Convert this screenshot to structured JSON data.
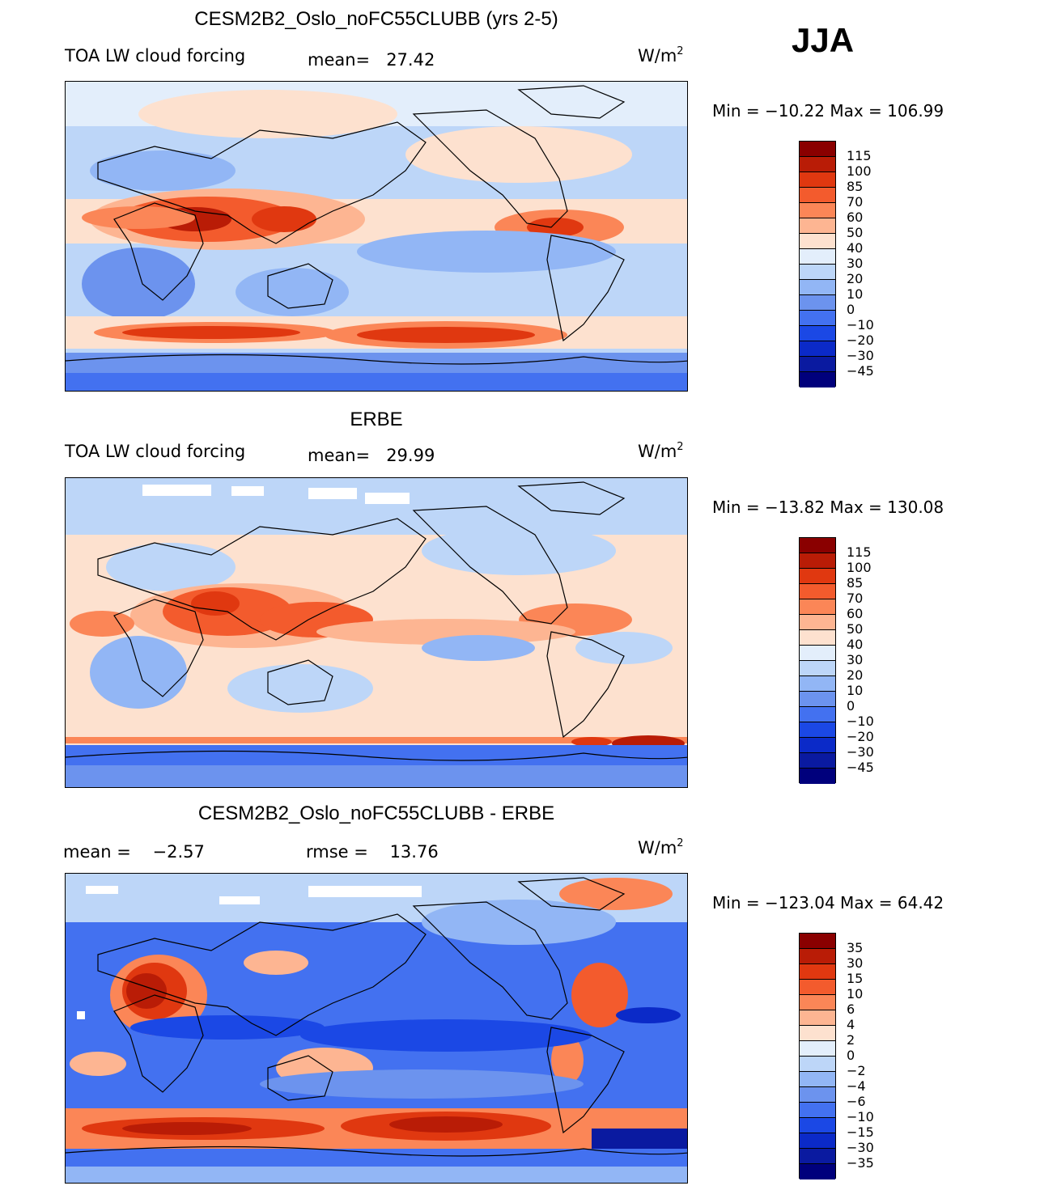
{
  "season": "JJA",
  "units_base": "W/m",
  "units_exp": "2",
  "palette_main": [
    "#8a0000",
    "#b91c06",
    "#e03810",
    "#f35b2d",
    "#fb8657",
    "#fdb592",
    "#fde1cf",
    "#e3eefb",
    "#bdd6f8",
    "#92b6f5",
    "#6c93ee",
    "#4371f0",
    "#1b48e5",
    "#0b2ac8",
    "#0a1aa0",
    "#00007c"
  ],
  "panels": [
    {
      "id": "model",
      "title": "CESM2B2_Oslo_noFC55CLUBB (yrs 2-5)",
      "variable": "TOA LW cloud forcing",
      "stat1_label": "mean=",
      "stat1_value": "27.42",
      "minmax": "Min  =  −10.22  Max  =  106.99",
      "colorbar_labels": [
        "115",
        "100",
        "85",
        "70",
        "60",
        "50",
        "40",
        "30",
        "20",
        "10",
        "0",
        "−10",
        "−20",
        "−30",
        "−45"
      ]
    },
    {
      "id": "obs",
      "title": "ERBE",
      "variable": "TOA LW cloud forcing",
      "stat1_label": "mean=",
      "stat1_value": "29.99",
      "minmax": "Min  =  −13.82  Max  =  130.08",
      "colorbar_labels": [
        "115",
        "100",
        "85",
        "70",
        "60",
        "50",
        "40",
        "30",
        "20",
        "10",
        "0",
        "−10",
        "−20",
        "−30",
        "−45"
      ]
    },
    {
      "id": "diff",
      "title": "CESM2B2_Oslo_noFC55CLUBB - ERBE",
      "stat1_label": "mean  =",
      "stat1_value": "−2.57",
      "stat2_label": "rmse  =",
      "stat2_value": "13.76",
      "minmax": "Min  =  −123.04  Max  =    64.42",
      "colorbar_labels": [
        "35",
        "30",
        "15",
        "10",
        "6",
        "4",
        "2",
        "0",
        "−2",
        "−4",
        "−6",
        "−10",
        "−15",
        "−30",
        "−35"
      ]
    }
  ]
}
